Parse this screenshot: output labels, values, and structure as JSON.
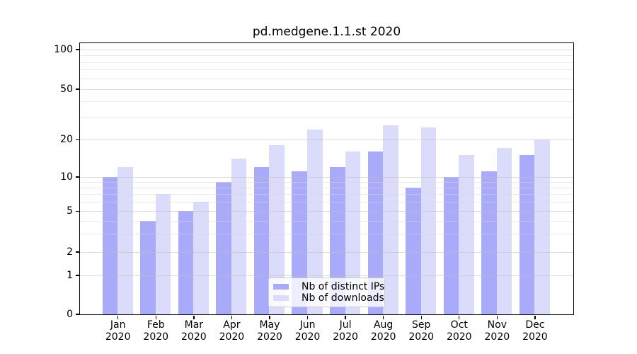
{
  "chart_data": {
    "type": "bar",
    "title": "pd.medgene.1.1.st 2020",
    "months": [
      "Jan",
      "Feb",
      "Mar",
      "Apr",
      "May",
      "Jun",
      "Jul",
      "Aug",
      "Sep",
      "Oct",
      "Nov",
      "Dec"
    ],
    "year_label": "2020",
    "series": [
      {
        "key": "distinct-ips",
        "name": "Nb of distinct IPs",
        "color": "#aaaafa",
        "values": [
          10,
          4,
          5,
          9,
          12,
          11,
          12,
          16,
          8,
          10,
          11,
          15
        ]
      },
      {
        "key": "downloads",
        "name": "Nb of downloads",
        "color": "#dbdbfc",
        "values": [
          12,
          7,
          6,
          14,
          18,
          24,
          16,
          26,
          25,
          15,
          17,
          20
        ]
      }
    ],
    "y_scale": "log (linear below 1)",
    "ylim": [
      0,
      115
    ],
    "y_tick_values": [
      100,
      50,
      20,
      10,
      5,
      2,
      1,
      0
    ],
    "y_tick_labels": [
      "100",
      "50",
      "20",
      "10",
      "5",
      "2",
      "1",
      "0"
    ],
    "y_minor_ticks": [
      3,
      4,
      6,
      7,
      8,
      9,
      30,
      40,
      60,
      70,
      80,
      90
    ],
    "grid": true,
    "legend_position": "lower center",
    "colors": {
      "grid_major": "#bdbdbd",
      "grid_minor": "#d8d8d8",
      "axis": "#000000",
      "legend_border": "#cbcbcb",
      "legend_bg": "#ffffff"
    }
  }
}
